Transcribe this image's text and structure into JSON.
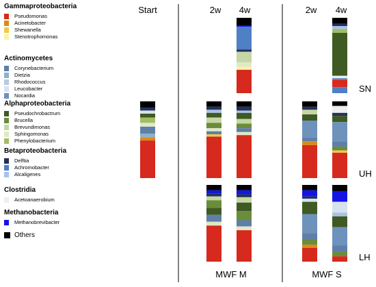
{
  "legend": {
    "groups": [
      {
        "name": "Gammaproteobacteria",
        "items": [
          {
            "label": "Pseudomonas",
            "color": "#d62a1e"
          },
          {
            "label": "Acinetobacter",
            "color": "#d98b19"
          },
          {
            "label": "Shewanella",
            "color": "#f2c84b"
          },
          {
            "label": "Stenotrophomonas",
            "color": "#f7f3a5"
          }
        ]
      },
      {
        "name": "Actinomycetes",
        "items": [
          {
            "label": "Corynebacterium",
            "color": "#5f7fa8"
          },
          {
            "label": "Dietzia",
            "color": "#8fb0cc"
          },
          {
            "label": "Rhodococcus",
            "color": "#b7cbdc"
          },
          {
            "label": "Leucobacter",
            "color": "#d7e3ec"
          },
          {
            "label": "Nocardia",
            "color": "#6d93bd"
          }
        ]
      },
      {
        "name": "Alphaproteobacteria",
        "items": [
          {
            "label": "Pseudochrobactrum",
            "color": "#3f5a22"
          },
          {
            "label": "Brucella",
            "color": "#6b8c3a"
          },
          {
            "label": "Brevundimonas",
            "color": "#c4d7a4"
          },
          {
            "label": "Sphingomonas",
            "color": "#dfe9c8"
          },
          {
            "label": "Phenylobacterium",
            "color": "#a2bd64"
          }
        ]
      },
      {
        "name": "Betaproteobacteria",
        "items": [
          {
            "label": "Delftia",
            "color": "#23315a"
          },
          {
            "label": "Achromobacter",
            "color": "#4f7fc4"
          },
          {
            "label": "Alcaligenes",
            "color": "#a9c2e8"
          }
        ]
      },
      {
        "name": "Clostridia",
        "items": [
          {
            "label": "Acetoanaerobium",
            "color": "#eeeeee"
          }
        ]
      },
      {
        "name": "Methanobacteria",
        "items": [
          {
            "label": "Methanobrevibacter",
            "color": "#1414e6"
          }
        ]
      }
    ],
    "others": {
      "label": "Others",
      "color": "#000000"
    }
  },
  "columns": [
    "Start",
    "2w",
    "4w",
    "2w",
    "4w"
  ],
  "rows": [
    "SN",
    "UH",
    "LH"
  ],
  "groups": [
    "MWF M",
    "MWF S"
  ],
  "chart_data": {
    "type": "bar",
    "stacked": true,
    "orientation": "vertical",
    "ylim": [
      0,
      100
    ],
    "xlabel": "",
    "ylabel": "",
    "categories": [
      "Start",
      "MWF M 2w",
      "MWF M 4w",
      "MWF S 2w",
      "MWF S 4w"
    ],
    "panels": [
      {
        "row": "SN",
        "samples": [
          {
            "category": "MWF M 4w",
            "segments": [
              {
                "taxon": "Others",
                "value": 10
              },
              {
                "taxon": "Methanobrevibacter",
                "value": 2
              },
              {
                "taxon": "Achromobacter",
                "value": 30
              },
              {
                "taxon": "Delftia",
                "value": 3
              },
              {
                "taxon": "Brevundimonas",
                "value": 14
              },
              {
                "taxon": "Sphingomonas",
                "value": 6
              },
              {
                "taxon": "Stenotrophomonas",
                "value": 4
              },
              {
                "taxon": "Pseudomonas",
                "value": 31
              }
            ]
          },
          {
            "category": "MWF S 2w",
            "segments": []
          },
          {
            "category": "MWF S 4w",
            "segments": [
              {
                "taxon": "Others",
                "value": 8
              },
              {
                "taxon": "Delftia",
                "value": 3
              },
              {
                "taxon": "Alcaligenes",
                "value": 4
              },
              {
                "taxon": "Phenylobacterium",
                "value": 5
              },
              {
                "taxon": "Pseudochrobactrum",
                "value": 57
              },
              {
                "taxon": "Acetoanaerobium",
                "value": 3
              },
              {
                "taxon": "Nocardia",
                "value": 2
              },
              {
                "taxon": "Pseudomonas",
                "value": 10
              },
              {
                "taxon": "Achromobacter",
                "value": 8
              }
            ]
          }
        ]
      },
      {
        "row": "UH",
        "samples": [
          {
            "category": "Start",
            "segments": [
              {
                "taxon": "Others",
                "value": 8
              },
              {
                "taxon": "Delftia",
                "value": 4
              },
              {
                "taxon": "Leucobacter",
                "value": 4
              },
              {
                "taxon": "Pseudochrobactrum",
                "value": 5
              },
              {
                "taxon": "Phenylobacterium",
                "value": 7
              },
              {
                "taxon": "Sphingomonas",
                "value": 5
              },
              {
                "taxon": "Corynebacterium",
                "value": 9
              },
              {
                "taxon": "Dietzia",
                "value": 5
              },
              {
                "taxon": "Acinetobacter",
                "value": 4
              },
              {
                "taxon": "Pseudomonas",
                "value": 49
              }
            ]
          },
          {
            "category": "MWF M 2w",
            "segments": [
              {
                "taxon": "Others",
                "value": 7
              },
              {
                "taxon": "Delftia",
                "value": 4
              },
              {
                "taxon": "Alcaligenes",
                "value": 4
              },
              {
                "taxon": "Pseudochrobactrum",
                "value": 6
              },
              {
                "taxon": "Brevundimonas",
                "value": 7
              },
              {
                "taxon": "Brucella",
                "value": 7
              },
              {
                "taxon": "Sphingomonas",
                "value": 4
              },
              {
                "taxon": "Corynebacterium",
                "value": 4
              },
              {
                "taxon": "Shewanella",
                "value": 3
              },
              {
                "taxon": "Pseudomonas",
                "value": 54
              }
            ]
          },
          {
            "category": "MWF M 4w",
            "segments": [
              {
                "taxon": "Others",
                "value": 7
              },
              {
                "taxon": "Delftia",
                "value": 5
              },
              {
                "taxon": "Alcaligenes",
                "value": 3
              },
              {
                "taxon": "Pseudochrobactrum",
                "value": 8
              },
              {
                "taxon": "Brevundimonas",
                "value": 6
              },
              {
                "taxon": "Brucella",
                "value": 6
              },
              {
                "taxon": "Corynebacterium",
                "value": 5
              },
              {
                "taxon": "Sphingomonas",
                "value": 4
              },
              {
                "taxon": "Pseudomonas",
                "value": 56
              }
            ]
          },
          {
            "category": "MWF S 2w",
            "segments": [
              {
                "taxon": "Others",
                "value": 7
              },
              {
                "taxon": "Delftia",
                "value": 4
              },
              {
                "taxon": "Brevundimonas",
                "value": 6
              },
              {
                "taxon": "Pseudochrobactrum",
                "value": 8
              },
              {
                "taxon": "Nocardia",
                "value": 22
              },
              {
                "taxon": "Corynebacterium",
                "value": 5
              },
              {
                "taxon": "Acinetobacter",
                "value": 5
              },
              {
                "taxon": "Pseudomonas",
                "value": 43
              }
            ]
          },
          {
            "category": "MWF S 4w",
            "segments": [
              {
                "taxon": "Others",
                "value": 6
              },
              {
                "taxon": "Acetoanaerobium",
                "value": 9
              },
              {
                "taxon": "Delftia",
                "value": 4
              },
              {
                "taxon": "Pseudochrobactrum",
                "value": 8
              },
              {
                "taxon": "Nocardia",
                "value": 25
              },
              {
                "taxon": "Corynebacterium",
                "value": 7
              },
              {
                "taxon": "Brucella",
                "value": 5
              },
              {
                "taxon": "Shewanella",
                "value": 3
              },
              {
                "taxon": "Pseudomonas",
                "value": 33
              }
            ]
          }
        ]
      },
      {
        "row": "LH",
        "samples": [
          {
            "category": "Start",
            "segments": []
          },
          {
            "category": "MWF M 2w",
            "segments": [
              {
                "taxon": "Others",
                "value": 7
              },
              {
                "taxon": "Methanobrevibacter",
                "value": 4
              },
              {
                "taxon": "Delftia",
                "value": 4
              },
              {
                "taxon": "Brevundimonas",
                "value": 5
              },
              {
                "taxon": "Brucella",
                "value": 10
              },
              {
                "taxon": "Pseudochrobactrum",
                "value": 9
              },
              {
                "taxon": "Corynebacterium",
                "value": 9
              },
              {
                "taxon": "Sphingomonas",
                "value": 5
              },
              {
                "taxon": "Pseudomonas",
                "value": 47
              }
            ]
          },
          {
            "category": "MWF M 4w",
            "segments": [
              {
                "taxon": "Others",
                "value": 7
              },
              {
                "taxon": "Methanobrevibacter",
                "value": 5
              },
              {
                "taxon": "Delftia",
                "value": 4
              },
              {
                "taxon": "Brevundimonas",
                "value": 7
              },
              {
                "taxon": "Pseudochrobactrum",
                "value": 11
              },
              {
                "taxon": "Brucella",
                "value": 12
              },
              {
                "taxon": "Corynebacterium",
                "value": 8
              },
              {
                "taxon": "Sphingomonas",
                "value": 5
              },
              {
                "taxon": "Pseudomonas",
                "value": 41
              }
            ]
          },
          {
            "category": "MWF S 2w",
            "segments": [
              {
                "taxon": "Others",
                "value": 7
              },
              {
                "taxon": "Methanobrevibacter",
                "value": 8
              },
              {
                "taxon": "Delftia",
                "value": 3
              },
              {
                "taxon": "Leucobacter",
                "value": 4
              },
              {
                "taxon": "Pseudochrobactrum",
                "value": 16
              },
              {
                "taxon": "Nocardia",
                "value": 25
              },
              {
                "taxon": "Corynebacterium",
                "value": 8
              },
              {
                "taxon": "Brucella",
                "value": 7
              },
              {
                "taxon": "Acinetobacter",
                "value": 4
              },
              {
                "taxon": "Pseudomonas",
                "value": 18
              }
            ]
          },
          {
            "category": "MWF S 4w",
            "segments": [
              {
                "taxon": "Others",
                "value": 8
              },
              {
                "taxon": "Methanobrevibacter",
                "value": 14
              },
              {
                "taxon": "Leucobacter",
                "value": 14
              },
              {
                "taxon": "Alcaligenes",
                "value": 5
              },
              {
                "taxon": "Pseudochrobactrum",
                "value": 14
              },
              {
                "taxon": "Nocardia",
                "value": 24
              },
              {
                "taxon": "Corynebacterium",
                "value": 8
              },
              {
                "taxon": "Brucella",
                "value": 6
              },
              {
                "taxon": "Pseudomonas",
                "value": 7
              }
            ]
          }
        ]
      }
    ]
  }
}
